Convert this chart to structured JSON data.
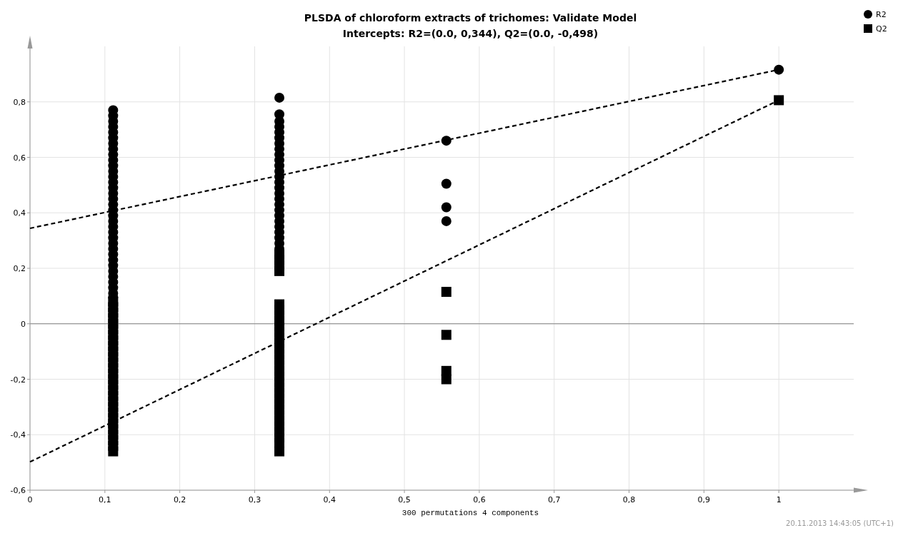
{
  "chart_data": {
    "type": "scatter",
    "title": "PLSDA of chloroform extracts of trichomes: Validate Model",
    "subtitle": "Intercepts: R2=(0.0, 0,344), Q2=(0.0, -0,498)",
    "xlabel": "300 permutations 4 components",
    "annotations": [
      "20.11.2013 14:43:05 (UTC+1)"
    ],
    "xlim": [
      0,
      1.1
    ],
    "ylim": [
      -0.6,
      1.0
    ],
    "xticks": [
      0,
      {
        "value": 0.1,
        "label": "0,1"
      },
      {
        "value": 0.2,
        "label": "0,2"
      },
      {
        "value": 0.3,
        "label": "0,3"
      },
      {
        "value": 0.4,
        "label": "0,4"
      },
      {
        "value": 0.5,
        "label": "0,5"
      },
      {
        "value": 0.6,
        "label": "0,6"
      },
      {
        "value": 0.7,
        "label": "0,7"
      },
      {
        "value": 0.8,
        "label": "0,8"
      },
      {
        "value": 0.9,
        "label": "0,9"
      },
      1
    ],
    "yticks": [
      {
        "value": -0.6,
        "label": "-0,6"
      },
      {
        "value": -0.4,
        "label": "-0,4"
      },
      {
        "value": -0.2,
        "label": "-0,2"
      },
      0,
      {
        "value": 0.2,
        "label": "0,2"
      },
      {
        "value": 0.4,
        "label": "0,4"
      },
      {
        "value": 0.6,
        "label": "0,6"
      },
      {
        "value": 0.8,
        "label": "0,8"
      }
    ],
    "grid": true,
    "legend": "top right",
    "ref_lines": [
      {
        "axis": "y",
        "value": 0,
        "color": "#808080"
      }
    ],
    "series": [
      {
        "name": "R2",
        "color": "#000000",
        "marker": "circle",
        "x": [
          0.111,
          0.111,
          0.111,
          0.111,
          0.111,
          0.111,
          0.111,
          0.111,
          0.111,
          0.111,
          0.111,
          0.111,
          0.111,
          0.111,
          0.111,
          0.111,
          0.111,
          0.111,
          0.111,
          0.111,
          0.111,
          0.111,
          0.111,
          0.111,
          0.111,
          0.111,
          0.111,
          0.111,
          0.111,
          0.111,
          0.111,
          0.111,
          0.111,
          0.111,
          0.111,
          0.333,
          0.333,
          0.333,
          0.333,
          0.333,
          0.333,
          0.333,
          0.333,
          0.333,
          0.333,
          0.333,
          0.333,
          0.333,
          0.333,
          0.333,
          0.333,
          0.333,
          0.333,
          0.333,
          0.333,
          0.333,
          0.333,
          0.333,
          0.333,
          0.333,
          0.333,
          0.556,
          0.556,
          0.556,
          0.556,
          1
        ],
        "values": [
          0.77,
          0.75,
          0.73,
          0.71,
          0.69,
          0.67,
          0.65,
          0.63,
          0.61,
          0.59,
          0.57,
          0.55,
          0.53,
          0.51,
          0.49,
          0.47,
          0.45,
          0.43,
          0.41,
          0.39,
          0.37,
          0.35,
          0.33,
          0.31,
          0.29,
          0.27,
          0.25,
          0.23,
          0.21,
          0.19,
          0.17,
          0.15,
          0.13,
          0.11,
          0.095,
          0.815,
          0.755,
          0.73,
          0.71,
          0.69,
          0.67,
          0.65,
          0.63,
          0.61,
          0.59,
          0.57,
          0.55,
          0.53,
          0.51,
          0.49,
          0.47,
          0.45,
          0.43,
          0.41,
          0.39,
          0.37,
          0.35,
          0.33,
          0.31,
          0.29,
          0.27,
          0.66,
          0.505,
          0.42,
          0.37,
          0.916
        ]
      },
      {
        "name": "Q2",
        "color": "#000000",
        "marker": "square",
        "x": [
          0.111,
          0.111,
          0.111,
          0.111,
          0.111,
          0.111,
          0.111,
          0.111,
          0.111,
          0.111,
          0.111,
          0.111,
          0.111,
          0.111,
          0.111,
          0.111,
          0.111,
          0.111,
          0.111,
          0.111,
          0.111,
          0.111,
          0.111,
          0.111,
          0.111,
          0.111,
          0.111,
          0.111,
          0.333,
          0.333,
          0.333,
          0.333,
          0.333,
          0.333,
          0.333,
          0.333,
          0.333,
          0.333,
          0.333,
          0.333,
          0.333,
          0.333,
          0.333,
          0.333,
          0.333,
          0.333,
          0.333,
          0.333,
          0.333,
          0.333,
          0.333,
          0.333,
          0.333,
          0.333,
          0.333,
          0.333,
          0.333,
          0.333,
          0.333,
          0.556,
          0.556,
          0.556,
          0.556,
          1
        ],
        "values": [
          0.08,
          0.06,
          0.04,
          0.02,
          0,
          -0.02,
          -0.04,
          -0.06,
          -0.08,
          -0.1,
          -0.12,
          -0.14,
          -0.16,
          -0.18,
          -0.2,
          -0.22,
          -0.24,
          -0.26,
          -0.28,
          -0.3,
          -0.32,
          -0.34,
          -0.36,
          -0.38,
          -0.4,
          -0.42,
          -0.44,
          -0.46,
          0.25,
          0.23,
          0.21,
          0.19,
          0.07,
          0.05,
          0.03,
          0.01,
          -0.01,
          -0.03,
          -0.05,
          -0.07,
          -0.09,
          -0.11,
          -0.13,
          -0.15,
          -0.17,
          -0.19,
          -0.21,
          -0.23,
          -0.25,
          -0.27,
          -0.29,
          -0.31,
          -0.33,
          -0.35,
          -0.37,
          -0.39,
          -0.41,
          -0.43,
          -0.46,
          0.115,
          -0.04,
          -0.17,
          -0.2,
          0.806
        ]
      },
      {
        "type": "line",
        "color": "#000000",
        "line_style": "dashed",
        "marker": "none",
        "x": [
          0,
          1
        ],
        "values": [
          0.344,
          0.916
        ]
      },
      {
        "type": "line",
        "color": "#000000",
        "line_style": "dashed",
        "marker": "none",
        "x": [
          0,
          1
        ],
        "values": [
          -0.498,
          0.806
        ]
      }
    ]
  }
}
